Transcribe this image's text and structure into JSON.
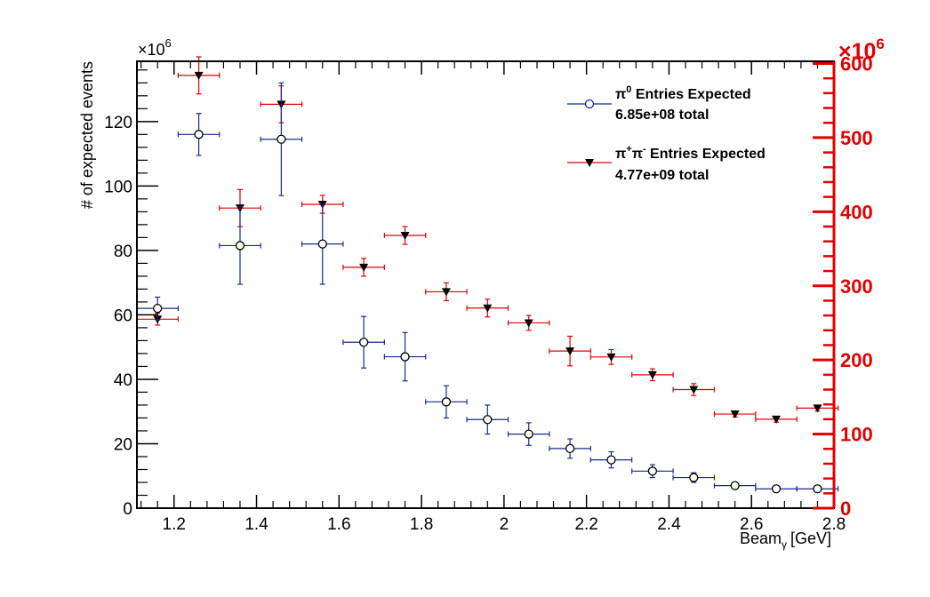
{
  "chart_data": {
    "type": "scatter",
    "xlabel": "Beam",
    "xlabel_sub": "γ",
    "xlabel_unit": "[GeV]",
    "ylabel": "# of expected events",
    "left_multiplier": "×10",
    "left_multiplier_exp": "6",
    "right_multiplier": "×10",
    "right_multiplier_exp": "6",
    "xlim": [
      1.11,
      2.8
    ],
    "ylim_left": [
      0,
      138.7
    ],
    "ylim_right": [
      0,
      603
    ],
    "x_ticks": [
      1.2,
      1.4,
      1.6,
      1.8,
      2.0,
      2.2,
      2.4,
      2.6,
      2.8
    ],
    "x_tick_labels": [
      "1.2",
      "1.4",
      "1.6",
      "1.8",
      "2",
      "2.2",
      "2.4",
      "2.6",
      "2.8"
    ],
    "y_ticks_left": [
      0,
      20,
      40,
      60,
      80,
      100,
      120
    ],
    "y_tick_labels_left": [
      "0",
      "20",
      "40",
      "60",
      "80",
      "100",
      "120"
    ],
    "y_ticks_right": [
      0,
      100,
      200,
      300,
      400,
      500,
      600
    ],
    "y_tick_labels_right": [
      "0",
      "100",
      "200",
      "300",
      "400",
      "500",
      "600"
    ],
    "grid": false,
    "legend_position": "top-right",
    "colors": {
      "pi0": "#1a2a8c",
      "pipi": "#e00000",
      "right_axis": "#e00000"
    },
    "series": [
      {
        "name": "π0 Entries Expected",
        "name_main": "π",
        "name_sup": "0",
        "name_rest": " Entries Expected",
        "total": "6.85e+08 total",
        "axis": "left",
        "marker": "open-circle",
        "x": [
          1.16,
          1.26,
          1.36,
          1.46,
          1.56,
          1.66,
          1.76,
          1.86,
          1.96,
          2.06,
          2.16,
          2.26,
          2.36,
          2.46,
          2.56,
          2.66,
          2.76
        ],
        "y": [
          62,
          116,
          81.5,
          114.5,
          82,
          51.5,
          47,
          33,
          27.5,
          23,
          18.5,
          15,
          11.5,
          9.5,
          7,
          6,
          6
        ],
        "yerr": [
          3.5,
          6.5,
          12,
          17.5,
          12.5,
          8,
          7.5,
          5,
          4.5,
          3.5,
          3,
          2.5,
          2,
          1.5,
          1,
          0.8,
          0.8
        ],
        "xerr": [
          0.05,
          0.05,
          0.05,
          0.05,
          0.05,
          0.05,
          0.05,
          0.05,
          0.05,
          0.05,
          0.05,
          0.05,
          0.05,
          0.05,
          0.05,
          0.05,
          0.05
        ]
      },
      {
        "name": "π+π- Entries Expected",
        "name_main": "π",
        "name_sup": "+",
        "name_mid": "π",
        "name_sup2": "-",
        "name_rest": " Entries Expected",
        "total": "4.77e+09 total",
        "axis": "right",
        "marker": "filled-triangle-down",
        "x": [
          1.16,
          1.26,
          1.36,
          1.46,
          1.56,
          1.66,
          1.76,
          1.86,
          1.96,
          2.06,
          2.16,
          2.26,
          2.36,
          2.46,
          2.56,
          2.66,
          2.76
        ],
        "y": [
          255,
          584,
          405,
          545,
          410,
          325,
          368,
          292,
          270,
          250,
          212,
          204,
          180,
          160,
          127,
          120,
          135
        ],
        "yerr": [
          8,
          25,
          25,
          25,
          12,
          12,
          12,
          12,
          12,
          10,
          20,
          10,
          8,
          8,
          4,
          4,
          4
        ],
        "xerr": [
          0.05,
          0.05,
          0.05,
          0.05,
          0.05,
          0.05,
          0.05,
          0.05,
          0.05,
          0.05,
          0.05,
          0.05,
          0.05,
          0.05,
          0.05,
          0.05,
          0.05
        ]
      }
    ]
  }
}
